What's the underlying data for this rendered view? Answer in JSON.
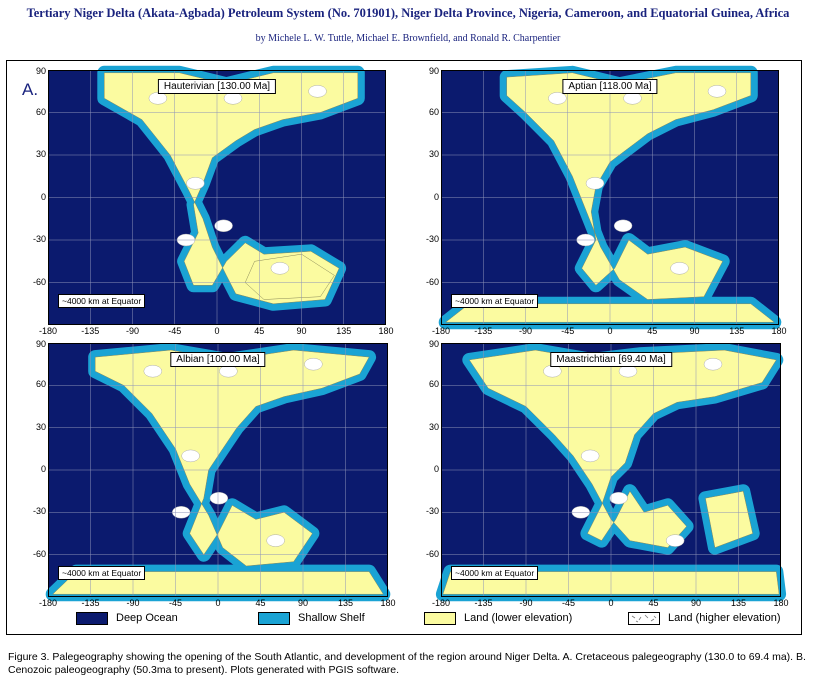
{
  "header": {
    "title": "Tertiary Niger Delta (Akata-Agbada) Petroleum System (No. 701901), Niger Delta Province, Nigeria, Cameroon, and Equatorial Guinea, Africa",
    "authors": "by Michele L. W. Tuttle, Michael E. Brownfield, and Ronald R. Charpentier"
  },
  "panel_letter": "A.",
  "x_ticks": [
    "-180",
    "-135",
    "-90",
    "-45",
    "0",
    "45",
    "90",
    "135",
    "180"
  ],
  "y_ticks": [
    "90",
    "60",
    "30",
    "0",
    "-30",
    "-60"
  ],
  "maps": [
    {
      "label": "Hauterivian [130.00 Ma]",
      "scale_note": "~4000 km at Equator"
    },
    {
      "label": "Aptian [118.00 Ma]",
      "scale_note": "~4000 km at Equator"
    },
    {
      "label": "Albian [100.00 Ma]",
      "scale_note": "~4000 km at Equator"
    },
    {
      "label": "Maastrichtian [69.40 Ma]",
      "scale_note": "~4000 km at Equator"
    }
  ],
  "legend": [
    {
      "label": "Deep Ocean",
      "color": "#0b1a6e"
    },
    {
      "label": "Shallow Shelf",
      "color": "#1aa3d4"
    },
    {
      "label": "Land (lower elevation)",
      "color": "#fbfba0"
    },
    {
      "label": "Land (higher elevation)",
      "color": "#ffffff"
    }
  ],
  "caption": "Figure 3.  Palegeography  showing the opening of the South Atlantic, and development of the region around Niger Delta.  A. Cretaceous palegeography (130.0 to 69.4 ma).  B.  Cenozoic paleogeography (50.3ma to present).  Plots generated with PGIS software."
}
